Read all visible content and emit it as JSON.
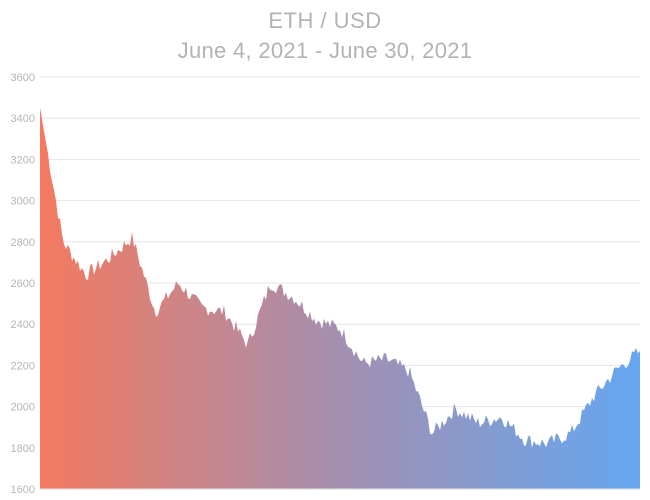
{
  "chart_data": {
    "type": "area",
    "title": "ETH / USD",
    "subtitle": "June 4, 2021 - June 30, 2021",
    "xlabel": "",
    "ylabel": "",
    "ylim": [
      1600,
      3600
    ],
    "y_ticks": [
      "3600",
      "3400",
      "3200",
      "3000",
      "2800",
      "2600",
      "2400",
      "2200",
      "2000",
      "1800",
      "1600"
    ],
    "grid": true,
    "gradient_colors": [
      "#f47a60",
      "#a38fb0",
      "#65a7f0"
    ],
    "series": [
      {
        "x": [
          "2021-06-04",
          "2021-06-05",
          "2021-06-06",
          "2021-06-07",
          "2021-06-08",
          "2021-06-09",
          "2021-06-10",
          "2021-06-11",
          "2021-06-12",
          "2021-06-13",
          "2021-06-14",
          "2021-06-15",
          "2021-06-16",
          "2021-06-17",
          "2021-06-18",
          "2021-06-19",
          "2021-06-20",
          "2021-06-21",
          "2021-06-22",
          "2021-06-23",
          "2021-06-24",
          "2021-06-25",
          "2021-06-26",
          "2021-06-27",
          "2021-06-28",
          "2021-06-29",
          "2021-06-30"
        ],
        "values": [
          3450,
          2800,
          2640,
          2720,
          2820,
          2460,
          2600,
          2480,
          2460,
          2300,
          2600,
          2530,
          2420,
          2380,
          2210,
          2230,
          2170,
          1870,
          1990,
          1920,
          1950,
          1840,
          1820,
          1870,
          2050,
          2180,
          2270
        ]
      }
    ]
  }
}
